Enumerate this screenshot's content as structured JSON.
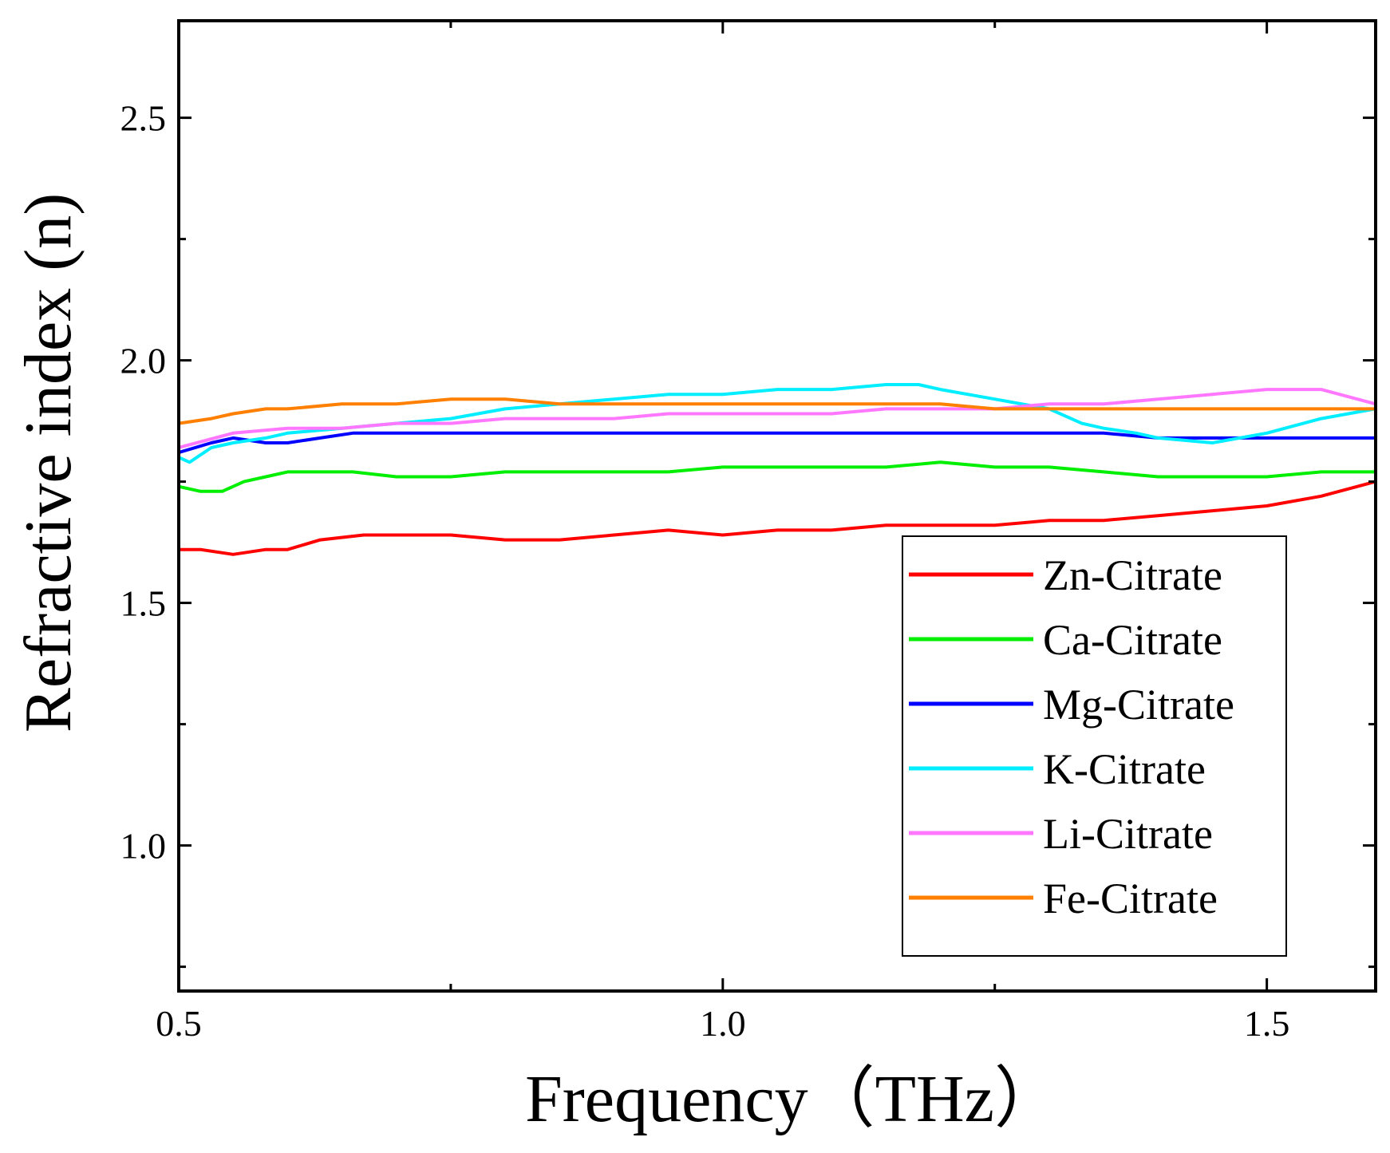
{
  "chart_data": {
    "type": "line",
    "title": "",
    "xlabel": "Frequency（THz）",
    "ylabel": "Refractive index (n)",
    "xlim": [
      0.5,
      1.6
    ],
    "ylim": [
      0.7,
      2.7
    ],
    "xticks": [
      {
        "value": 0.5,
        "label": "0.5"
      },
      {
        "value": 1.0,
        "label": "1.0"
      },
      {
        "value": 1.5,
        "label": "1.5"
      }
    ],
    "xminor": [
      0.75,
      1.25
    ],
    "yticks": [
      {
        "value": 1.0,
        "label": "1.0"
      },
      {
        "value": 1.5,
        "label": "1.5"
      },
      {
        "value": 2.0,
        "label": "2.0"
      },
      {
        "value": 2.5,
        "label": "2.5"
      }
    ],
    "yminor": [
      0.75,
      1.25,
      1.75,
      2.25
    ],
    "legend_position": "bottom-right",
    "grid": false,
    "series": [
      {
        "name": "Zn-Citrate",
        "color": "#ff0000",
        "x": [
          0.5,
          0.52,
          0.55,
          0.58,
          0.6,
          0.63,
          0.67,
          0.7,
          0.75,
          0.8,
          0.85,
          0.9,
          0.95,
          1.0,
          1.05,
          1.1,
          1.15,
          1.2,
          1.25,
          1.3,
          1.35,
          1.4,
          1.45,
          1.5,
          1.55,
          1.6
        ],
        "y": [
          1.61,
          1.61,
          1.6,
          1.61,
          1.61,
          1.63,
          1.64,
          1.64,
          1.64,
          1.63,
          1.63,
          1.64,
          1.65,
          1.64,
          1.65,
          1.65,
          1.66,
          1.66,
          1.66,
          1.67,
          1.67,
          1.68,
          1.69,
          1.7,
          1.72,
          1.75
        ]
      },
      {
        "name": "Ca-Citrate",
        "color": "#00ee00",
        "x": [
          0.5,
          0.52,
          0.54,
          0.56,
          0.58,
          0.6,
          0.63,
          0.66,
          0.7,
          0.75,
          0.8,
          0.85,
          0.9,
          0.95,
          1.0,
          1.05,
          1.1,
          1.15,
          1.2,
          1.25,
          1.3,
          1.35,
          1.4,
          1.45,
          1.5,
          1.55,
          1.6
        ],
        "y": [
          1.74,
          1.73,
          1.73,
          1.75,
          1.76,
          1.77,
          1.77,
          1.77,
          1.76,
          1.76,
          1.77,
          1.77,
          1.77,
          1.77,
          1.78,
          1.78,
          1.78,
          1.78,
          1.79,
          1.78,
          1.78,
          1.77,
          1.76,
          1.76,
          1.76,
          1.77,
          1.77
        ]
      },
      {
        "name": "Mg-Citrate",
        "color": "#0000ff",
        "x": [
          0.5,
          0.53,
          0.55,
          0.58,
          0.6,
          0.63,
          0.66,
          0.7,
          0.75,
          0.8,
          0.85,
          0.9,
          0.95,
          1.0,
          1.05,
          1.1,
          1.15,
          1.2,
          1.25,
          1.3,
          1.35,
          1.4,
          1.45,
          1.5,
          1.55,
          1.6
        ],
        "y": [
          1.81,
          1.83,
          1.84,
          1.83,
          1.83,
          1.84,
          1.85,
          1.85,
          1.85,
          1.85,
          1.85,
          1.85,
          1.85,
          1.85,
          1.85,
          1.85,
          1.85,
          1.85,
          1.85,
          1.85,
          1.85,
          1.84,
          1.84,
          1.84,
          1.84,
          1.84
        ]
      },
      {
        "name": "K-Citrate",
        "color": "#00eeff",
        "x": [
          0.5,
          0.51,
          0.53,
          0.55,
          0.58,
          0.6,
          0.65,
          0.7,
          0.75,
          0.8,
          0.85,
          0.9,
          0.95,
          1.0,
          1.05,
          1.1,
          1.15,
          1.18,
          1.2,
          1.25,
          1.3,
          1.33,
          1.35,
          1.38,
          1.4,
          1.45,
          1.5,
          1.55,
          1.6
        ],
        "y": [
          1.8,
          1.79,
          1.82,
          1.83,
          1.84,
          1.85,
          1.86,
          1.87,
          1.88,
          1.9,
          1.91,
          1.92,
          1.93,
          1.93,
          1.94,
          1.94,
          1.95,
          1.95,
          1.94,
          1.92,
          1.9,
          1.87,
          1.86,
          1.85,
          1.84,
          1.83,
          1.85,
          1.88,
          1.9
        ]
      },
      {
        "name": "Li-Citrate",
        "color": "#ff77ff",
        "x": [
          0.5,
          0.55,
          0.6,
          0.65,
          0.7,
          0.75,
          0.8,
          0.85,
          0.9,
          0.95,
          1.0,
          1.05,
          1.1,
          1.15,
          1.2,
          1.25,
          1.3,
          1.35,
          1.4,
          1.45,
          1.5,
          1.55,
          1.6
        ],
        "y": [
          1.82,
          1.85,
          1.86,
          1.86,
          1.87,
          1.87,
          1.88,
          1.88,
          1.88,
          1.89,
          1.89,
          1.89,
          1.89,
          1.9,
          1.9,
          1.9,
          1.91,
          1.91,
          1.92,
          1.93,
          1.94,
          1.94,
          1.91
        ]
      },
      {
        "name": "Fe-Citrate",
        "color": "#ff7f00",
        "x": [
          0.5,
          0.53,
          0.55,
          0.58,
          0.6,
          0.65,
          0.7,
          0.75,
          0.8,
          0.85,
          0.9,
          0.95,
          1.0,
          1.05,
          1.1,
          1.15,
          1.2,
          1.25,
          1.3,
          1.35,
          1.4,
          1.45,
          1.5,
          1.55,
          1.6
        ],
        "y": [
          1.87,
          1.88,
          1.89,
          1.9,
          1.9,
          1.91,
          1.91,
          1.92,
          1.92,
          1.91,
          1.91,
          1.91,
          1.91,
          1.91,
          1.91,
          1.91,
          1.91,
          1.9,
          1.9,
          1.9,
          1.9,
          1.9,
          1.9,
          1.9,
          1.9
        ]
      }
    ]
  }
}
